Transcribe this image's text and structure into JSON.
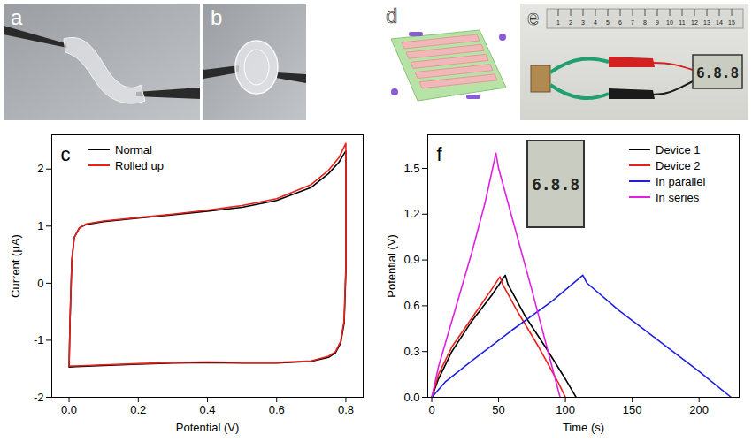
{
  "chart_data": [
    {
      "type": "line",
      "title": "c",
      "x_label": "Potential (V)",
      "y_label": "Current (μA)",
      "xlim": [
        -0.05,
        0.85
      ],
      "xticks": [
        {
          "value": 0,
          "label": "0.0"
        },
        0.2,
        0.4,
        0.6,
        0.8
      ],
      "ylim": [
        -2,
        2.6
      ],
      "yticks": [
        -2,
        -1,
        0,
        1,
        2
      ],
      "legend": "top-left",
      "series": [
        {
          "name": "Normal",
          "color": "#000000",
          "x": [
            0,
            0.003,
            0.008,
            0.015,
            0.03,
            0.05,
            0.1,
            0.2,
            0.3,
            0.4,
            0.5,
            0.6,
            0.7,
            0.75,
            0.78,
            0.8,
            0.8,
            0.795,
            0.785,
            0.77,
            0.75,
            0.7,
            0.6,
            0.5,
            0.4,
            0.3,
            0.2,
            0.1,
            0.02,
            0
          ],
          "values": [
            -1.47,
            -0.6,
            0.4,
            0.8,
            0.97,
            1.03,
            1.08,
            1.14,
            1.2,
            1.26,
            1.33,
            1.45,
            1.68,
            1.92,
            2.12,
            2.32,
            0.2,
            -0.7,
            -1.05,
            -1.22,
            -1.3,
            -1.37,
            -1.4,
            -1.4,
            -1.39,
            -1.4,
            -1.42,
            -1.44,
            -1.46,
            -1.47
          ]
        },
        {
          "name": "Rolled up",
          "color": "#e8211c",
          "x": [
            0,
            0.003,
            0.008,
            0.015,
            0.03,
            0.05,
            0.1,
            0.2,
            0.3,
            0.4,
            0.5,
            0.6,
            0.7,
            0.75,
            0.78,
            0.8,
            0.8,
            0.795,
            0.785,
            0.77,
            0.75,
            0.7,
            0.6,
            0.5,
            0.4,
            0.3,
            0.2,
            0.1,
            0.02,
            0
          ],
          "values": [
            -1.45,
            -0.6,
            0.4,
            0.8,
            0.97,
            1.04,
            1.09,
            1.15,
            1.21,
            1.28,
            1.36,
            1.48,
            1.73,
            1.98,
            2.2,
            2.45,
            0.3,
            -0.65,
            -1.02,
            -1.2,
            -1.28,
            -1.36,
            -1.39,
            -1.39,
            -1.38,
            -1.39,
            -1.41,
            -1.43,
            -1.45,
            -1.45
          ]
        }
      ]
    },
    {
      "type": "line",
      "title": "f",
      "x_label": "Time (s)",
      "y_label": "Potential (V)",
      "xlim": [
        -3,
        230
      ],
      "xticks": [
        0,
        50,
        100,
        150,
        200
      ],
      "ylim": [
        0,
        1.72
      ],
      "yticks": [
        {
          "value": 0,
          "label": "0.0"
        },
        0.3,
        0.6,
        0.9,
        1.2,
        1.5
      ],
      "legend": "top-right",
      "series": [
        {
          "name": "Device 1",
          "color": "#000000",
          "x": [
            0,
            5,
            15,
            30,
            45,
            55,
            57,
            70,
            85,
            100,
            108
          ],
          "values": [
            0,
            0.12,
            0.3,
            0.5,
            0.67,
            0.8,
            0.74,
            0.53,
            0.33,
            0.12,
            0
          ]
        },
        {
          "name": "Device 2",
          "color": "#e8211c",
          "x": [
            0,
            5,
            15,
            30,
            45,
            51,
            53,
            65,
            80,
            95,
            100
          ],
          "values": [
            0,
            0.15,
            0.33,
            0.52,
            0.71,
            0.79,
            0.74,
            0.55,
            0.33,
            0.09,
            0
          ]
        },
        {
          "name": "In parallel",
          "color": "#1f1fe0",
          "x": [
            0,
            10,
            30,
            60,
            90,
            113,
            116,
            140,
            170,
            200,
            224
          ],
          "values": [
            0,
            0.1,
            0.24,
            0.44,
            0.63,
            0.8,
            0.75,
            0.57,
            0.37,
            0.17,
            0
          ]
        },
        {
          "name": "In series",
          "color": "#e020e0",
          "x": [
            0,
            5,
            15,
            30,
            40,
            48,
            50,
            60,
            75,
            90,
            96
          ],
          "values": [
            0,
            0.2,
            0.5,
            0.95,
            1.28,
            1.6,
            1.5,
            1.18,
            0.7,
            0.2,
            0
          ]
        }
      ]
    }
  ],
  "photos": [
    {
      "label": "a"
    },
    {
      "label": "b"
    },
    {
      "label": "d"
    },
    {
      "label": "e",
      "ruler_marks": [
        1,
        2,
        3,
        4,
        5,
        6,
        7,
        8,
        9,
        10,
        11,
        12,
        13,
        14,
        15
      ],
      "display": "6.8.8"
    }
  ],
  "inset": {
    "panel": "f",
    "display": "6.8.8"
  }
}
